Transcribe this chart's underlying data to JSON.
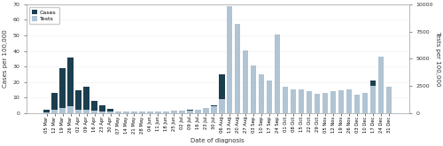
{
  "x_labels": [
    "05 Mar",
    "12 Mar",
    "19 Mar",
    "26 Mar",
    "02 Apr",
    "09 Apr",
    "16 Apr",
    "23 Apr",
    "30 Apr",
    "07 May",
    "14 May",
    "21 May",
    "28 May",
    "04 Jun",
    "11 Jun",
    "18 Jun",
    "25 Jun",
    "02 Jul",
    "09 Jul",
    "16 Jul",
    "23 Jul",
    "30 Jul",
    "06 Aug",
    "13 Aug",
    "20 Aug",
    "27 Aug",
    "03 Sep",
    "10 Sep",
    "17 Sep",
    "24 Sep",
    "01 Oct",
    "08 Oct",
    "15 Oct",
    "22 Oct",
    "29 Oct",
    "05 Nov",
    "12 Nov",
    "19 Nov",
    "26 Nov",
    "03 Dec",
    "10 Dec",
    "17 Dec",
    "24 Dec",
    "31 Dec"
  ],
  "cases": [
    2,
    13,
    29,
    36,
    15,
    17,
    8,
    5,
    3,
    1,
    1,
    0,
    1,
    1,
    0,
    1,
    0,
    1,
    2,
    1,
    3,
    5,
    25,
    68,
    27,
    20,
    15,
    12,
    7,
    46,
    5,
    8,
    10,
    8,
    6,
    5,
    6,
    8,
    7,
    4,
    9,
    21,
    32,
    14
  ],
  "tests": [
    50,
    300,
    450,
    650,
    350,
    280,
    220,
    180,
    160,
    130,
    120,
    140,
    150,
    170,
    180,
    190,
    200,
    220,
    250,
    320,
    450,
    620,
    1300,
    9800,
    8200,
    5800,
    4400,
    3600,
    3000,
    7200,
    2400,
    2200,
    2200,
    2000,
    1800,
    1900,
    2000,
    2100,
    2200,
    1700,
    1900,
    2500,
    5200,
    2400
  ],
  "cases_color": "#1c3f50",
  "tests_color": "#b0c4d4",
  "cases_ylim": [
    0,
    70
  ],
  "tests_ylim": [
    0,
    10000
  ],
  "cases_yticks": [
    0,
    10,
    20,
    30,
    40,
    50,
    60,
    70
  ],
  "tests_yticks": [
    0,
    2500,
    5000,
    7500,
    10000
  ],
  "ylabel_left": "Cases per 100,000",
  "ylabel_right": "Tests per 100,000",
  "xlabel": "Date of diagnosis",
  "bg_color": "#ffffff",
  "label_fontsize": 5,
  "tick_fontsize": 4.5,
  "xtick_fontsize": 3.8
}
